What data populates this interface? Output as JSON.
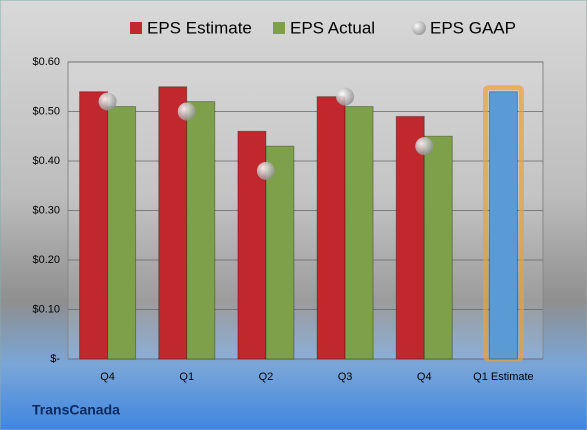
{
  "chart_data": {
    "type": "bar",
    "categories": [
      "Q4",
      "Q1",
      "Q2",
      "Q3",
      "Q4",
      "Q1 Estimate"
    ],
    "series": [
      {
        "name": "EPS Estimate",
        "color": "#c0282d",
        "colors": [
          "#c0282d",
          "#c0282d",
          "#c0282d",
          "#c0282d",
          "#c0282d",
          "#5b9bd5"
        ],
        "values": [
          0.54,
          0.55,
          0.46,
          0.53,
          0.49,
          0.54
        ]
      },
      {
        "name": "EPS Actual",
        "color": "#7fa04a",
        "values": [
          0.51,
          0.52,
          0.43,
          0.51,
          0.45,
          null
        ]
      },
      {
        "name": "EPS GAAP",
        "color": "#a6a6a6",
        "type": "scatter",
        "values": [
          0.52,
          0.5,
          0.38,
          0.53,
          0.43,
          null
        ]
      }
    ],
    "ylim": [
      0,
      0.6
    ],
    "yticks": [
      {
        "value": 0,
        "label": "$-"
      },
      {
        "value": 0.1,
        "label": "$0.10"
      },
      {
        "value": 0.2,
        "label": "$0.20"
      },
      {
        "value": 0.3,
        "label": "$0.30"
      },
      {
        "value": 0.4,
        "label": "$0.40"
      },
      {
        "value": 0.5,
        "label": "$0.50"
      },
      {
        "value": 0.6,
        "label": "$0.60"
      }
    ],
    "grid": true,
    "footer": "TransCanada"
  }
}
